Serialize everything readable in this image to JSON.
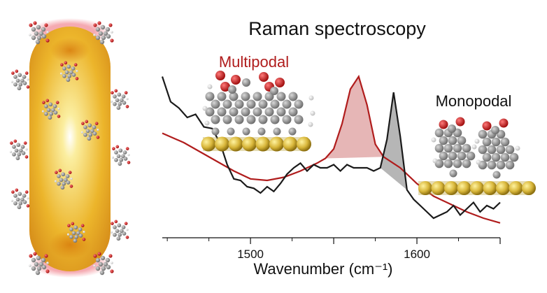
{
  "title": "Raman spectroscopy",
  "labels": {
    "multipodal": "Multipodal",
    "monopodal": "Monopodal"
  },
  "colors": {
    "multipodal": "#b01c1c",
    "monopodal": "#1a1a1a",
    "gold_bright": "#fbeea0",
    "gold_mid": "#e8b32a",
    "gold_dark": "#c87a12",
    "halo": "#f4a0a8",
    "oxygen": "#d21a1a",
    "carbon": "#8a8a8a",
    "hydrogen": "#e8e8e8"
  },
  "chart_data": {
    "type": "line",
    "xlabel": "Wavenumber (cm⁻¹)",
    "xlim": [
      1447,
      1650
    ],
    "xticks": [
      1500,
      1550,
      1600,
      1650
    ],
    "xtick_labels": [
      "1500",
      "",
      "1600",
      ""
    ],
    "series": [
      {
        "key": "multipodal",
        "x": [
          1447,
          1460,
          1470,
          1480,
          1490,
          1500,
          1510,
          1520,
          1530,
          1540,
          1545,
          1550,
          1555,
          1560,
          1565,
          1570,
          1575,
          1580,
          1590,
          1600,
          1610,
          1620,
          1630,
          1640,
          1650
        ],
        "y": [
          0.62,
          0.56,
          0.5,
          0.44,
          0.38,
          0.33,
          0.32,
          0.34,
          0.38,
          0.43,
          0.46,
          0.52,
          0.68,
          0.9,
          0.98,
          0.8,
          0.55,
          0.47,
          0.4,
          0.3,
          0.22,
          0.17,
          0.12,
          0.08,
          0.05
        ]
      },
      {
        "key": "monopodal",
        "x": [
          1447,
          1452,
          1457,
          1462,
          1467,
          1472,
          1477,
          1482,
          1486,
          1490,
          1494,
          1498,
          1502,
          1506,
          1510,
          1514,
          1518,
          1522,
          1526,
          1530,
          1534,
          1538,
          1542,
          1546,
          1550,
          1554,
          1558,
          1562,
          1566,
          1570,
          1574,
          1578,
          1582,
          1586,
          1590,
          1594,
          1598,
          1602,
          1606,
          1610,
          1614,
          1618,
          1622,
          1626,
          1630,
          1634,
          1638,
          1642,
          1646,
          1650
        ],
        "y": [
          0.98,
          0.82,
          0.78,
          0.72,
          0.74,
          0.66,
          0.65,
          0.55,
          0.42,
          0.33,
          0.32,
          0.28,
          0.27,
          0.24,
          0.28,
          0.25,
          0.3,
          0.36,
          0.4,
          0.43,
          0.38,
          0.42,
          0.4,
          0.4,
          0.42,
          0.38,
          0.42,
          0.4,
          0.4,
          0.4,
          0.38,
          0.4,
          0.58,
          0.88,
          0.6,
          0.26,
          0.2,
          0.16,
          0.12,
          0.08,
          0.1,
          0.12,
          0.16,
          0.1,
          0.14,
          0.18,
          0.12,
          0.16,
          0.14,
          0.18
        ]
      }
    ]
  }
}
